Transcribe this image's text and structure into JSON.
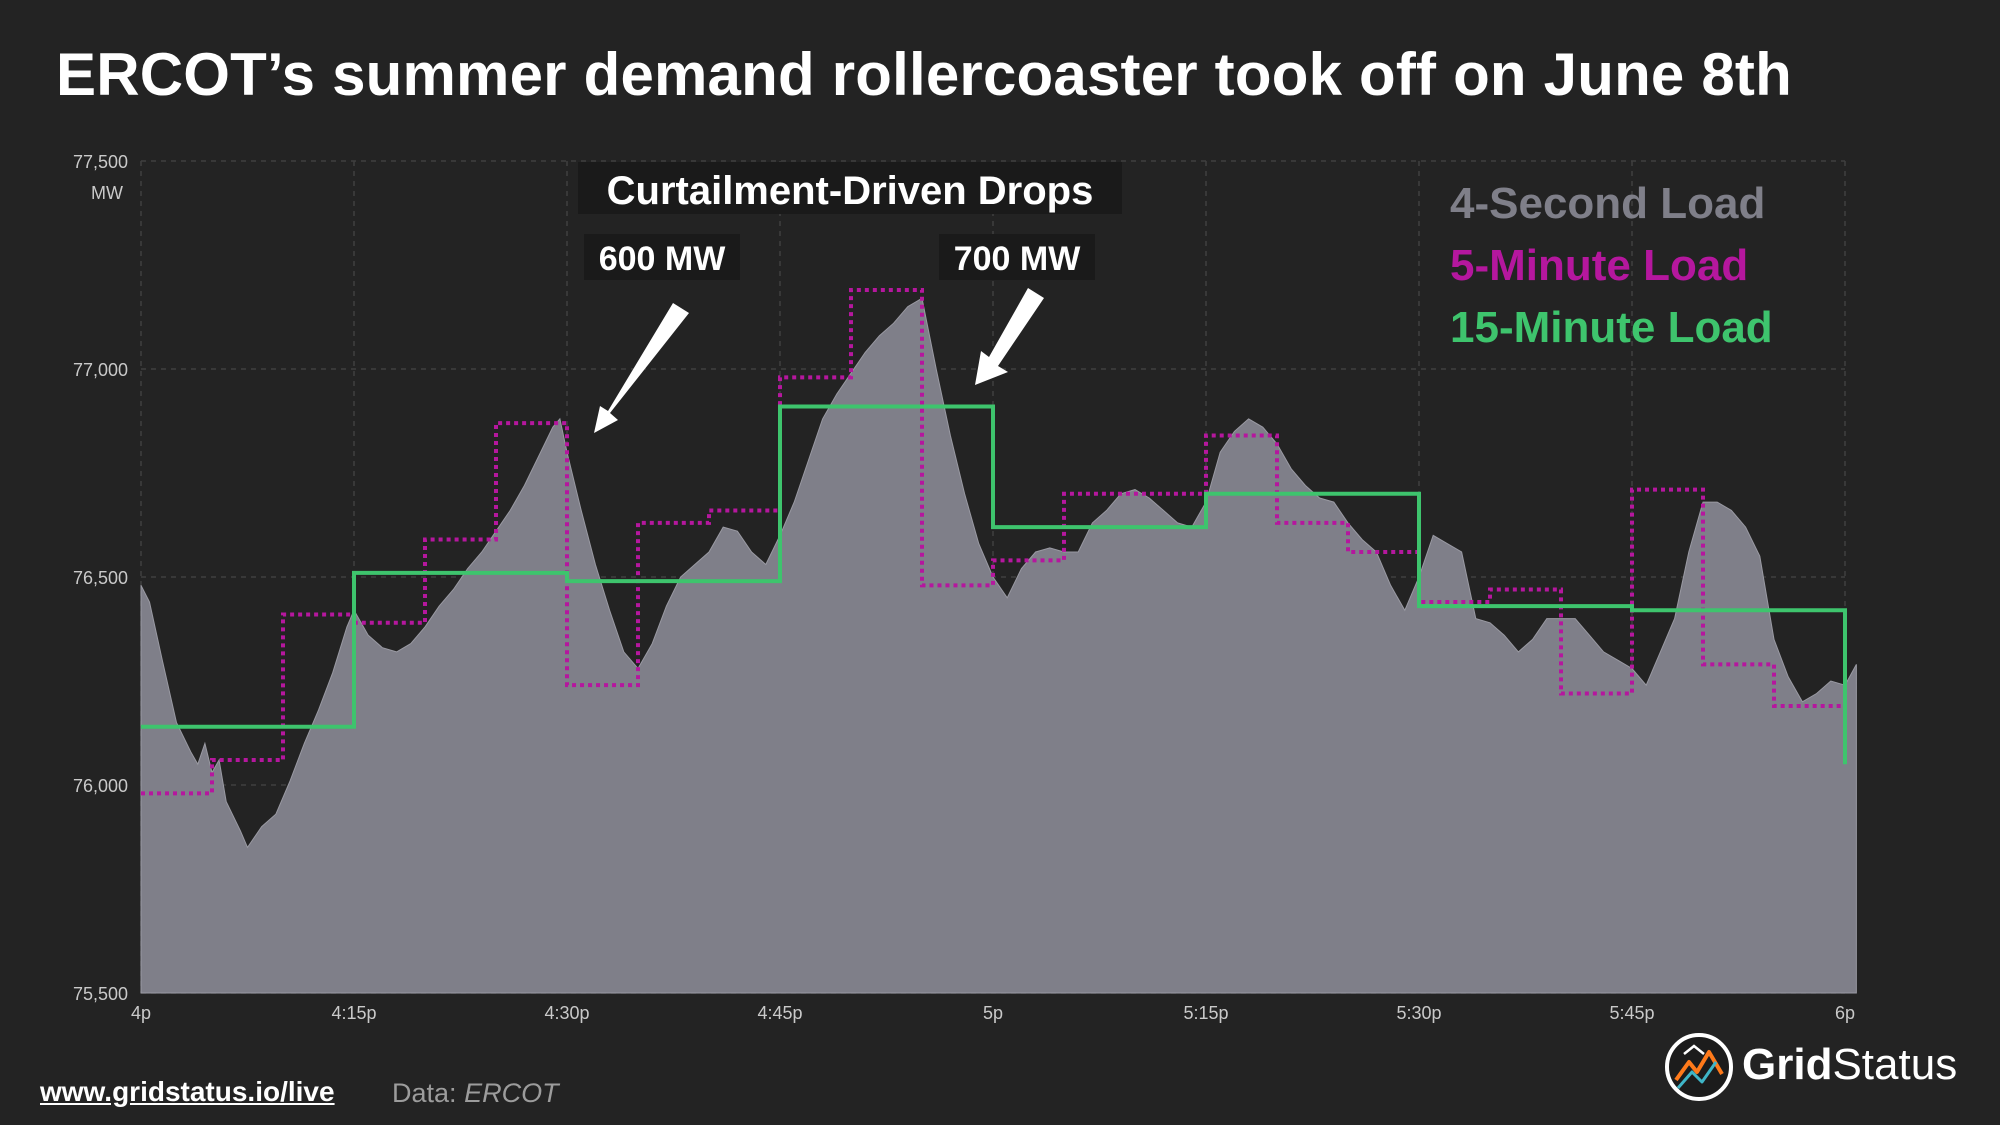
{
  "title": "ERCOT’s summer demand rollercoaster took off on June 8th",
  "footer": {
    "link": "www.gridstatus.io/live",
    "source_label": "Data:",
    "source_name": "ERCOT"
  },
  "brand": {
    "part1": "Grid",
    "part2": "Status"
  },
  "colors": {
    "background": "#232323",
    "load_4s": "#7f7f89",
    "load_5m": "#b5179e",
    "load_15m": "#3ec46d",
    "grid": "#3f3f3f",
    "tick": "#c9c9c9"
  },
  "chart_data": {
    "type": "line",
    "title": "",
    "xlabel": "",
    "ylabel": "MW",
    "x_unit": "minutes after 4p",
    "xlim": [
      0,
      120
    ],
    "ylim": [
      75500,
      77500
    ],
    "yticks": [
      75500,
      76000,
      76500,
      77000,
      77500
    ],
    "ytick_labels": [
      "75,500",
      "76,000",
      "76,500",
      "77,000",
      "77,500"
    ],
    "xticks": [
      0,
      15,
      30,
      45,
      60,
      75,
      90,
      105,
      120
    ],
    "xtick_labels": [
      "4p",
      "4:15p",
      "4:30p",
      "4:45p",
      "5p",
      "5:15p",
      "5:30p",
      "5:45p",
      "6p"
    ],
    "legend": [
      {
        "key": "load_4s",
        "label": "4-Second Load"
      },
      {
        "key": "load_5m",
        "label": "5-Minute Load"
      },
      {
        "key": "load_15m",
        "label": "15-Minute Load"
      }
    ],
    "annotations": {
      "heading": "Curtailment-Driven Drops",
      "drops": [
        {
          "label": "600 MW",
          "from_x": 29,
          "from_y": 76880,
          "to_x": 34,
          "to_y": 76280
        },
        {
          "label": "700 MW",
          "from_x": 55,
          "from_y": 77170,
          "to_x": 61,
          "to_y": 76450
        }
      ]
    },
    "series": [
      {
        "name": "4-Second Load",
        "key": "load_4s",
        "style": "area",
        "points": [
          [
            0,
            76480
          ],
          [
            0.6,
            76440
          ],
          [
            1.5,
            76300
          ],
          [
            2.5,
            76150
          ],
          [
            3.5,
            76080
          ],
          [
            4,
            76050
          ],
          [
            4.5,
            76100
          ],
          [
            5,
            76030
          ],
          [
            5.5,
            76060
          ],
          [
            6,
            75960
          ],
          [
            7,
            75890
          ],
          [
            7.5,
            75850
          ],
          [
            8.5,
            75900
          ],
          [
            9.5,
            75930
          ],
          [
            10.5,
            76010
          ],
          [
            11.5,
            76100
          ],
          [
            12.5,
            76180
          ],
          [
            13.5,
            76270
          ],
          [
            14.5,
            76380
          ],
          [
            15,
            76420
          ],
          [
            16,
            76360
          ],
          [
            17,
            76330
          ],
          [
            18,
            76320
          ],
          [
            19,
            76340
          ],
          [
            20,
            76380
          ],
          [
            21,
            76430
          ],
          [
            22,
            76470
          ],
          [
            23,
            76520
          ],
          [
            24,
            76560
          ],
          [
            25,
            76610
          ],
          [
            26,
            76660
          ],
          [
            27,
            76720
          ],
          [
            28,
            76790
          ],
          [
            29,
            76860
          ],
          [
            29.5,
            76880
          ],
          [
            30,
            76800
          ],
          [
            31,
            76660
          ],
          [
            32,
            76530
          ],
          [
            33,
            76420
          ],
          [
            34,
            76320
          ],
          [
            35,
            76280
          ],
          [
            36,
            76340
          ],
          [
            37,
            76430
          ],
          [
            38,
            76500
          ],
          [
            39,
            76530
          ],
          [
            40,
            76560
          ],
          [
            41,
            76620
          ],
          [
            42,
            76610
          ],
          [
            43,
            76560
          ],
          [
            44,
            76530
          ],
          [
            45,
            76600
          ],
          [
            46,
            76680
          ],
          [
            47,
            76780
          ],
          [
            48,
            76880
          ],
          [
            49,
            76940
          ],
          [
            50,
            76990
          ],
          [
            51,
            77040
          ],
          [
            52,
            77080
          ],
          [
            53,
            77110
          ],
          [
            54,
            77150
          ],
          [
            55,
            77170
          ],
          [
            56,
            77000
          ],
          [
            57,
            76840
          ],
          [
            58,
            76700
          ],
          [
            59,
            76580
          ],
          [
            60,
            76500
          ],
          [
            61,
            76450
          ],
          [
            62,
            76520
          ],
          [
            63,
            76560
          ],
          [
            64,
            76570
          ],
          [
            65,
            76560
          ],
          [
            66,
            76560
          ],
          [
            67,
            76630
          ],
          [
            68,
            76660
          ],
          [
            69,
            76700
          ],
          [
            70,
            76710
          ],
          [
            71,
            76690
          ],
          [
            72,
            76660
          ],
          [
            73,
            76630
          ],
          [
            74,
            76620
          ],
          [
            75,
            76680
          ],
          [
            76,
            76800
          ],
          [
            77,
            76850
          ],
          [
            78,
            76880
          ],
          [
            79,
            76860
          ],
          [
            80,
            76820
          ],
          [
            81,
            76760
          ],
          [
            82,
            76720
          ],
          [
            83,
            76690
          ],
          [
            84,
            76680
          ],
          [
            85,
            76630
          ],
          [
            86,
            76590
          ],
          [
            87,
            76560
          ],
          [
            88,
            76480
          ],
          [
            89,
            76420
          ],
          [
            90,
            76500
          ],
          [
            91,
            76600
          ],
          [
            92,
            76580
          ],
          [
            93,
            76560
          ],
          [
            94,
            76400
          ],
          [
            95,
            76390
          ],
          [
            96,
            76360
          ],
          [
            97,
            76320
          ],
          [
            98,
            76350
          ],
          [
            99,
            76400
          ],
          [
            100,
            76400
          ],
          [
            101,
            76400
          ],
          [
            102,
            76360
          ],
          [
            103,
            76320
          ],
          [
            104,
            76300
          ],
          [
            105,
            76280
          ],
          [
            106,
            76240
          ],
          [
            107,
            76320
          ],
          [
            108,
            76400
          ],
          [
            109,
            76560
          ],
          [
            110,
            76680
          ],
          [
            111,
            76680
          ],
          [
            112,
            76660
          ],
          [
            113,
            76620
          ],
          [
            114,
            76550
          ],
          [
            115,
            76350
          ],
          [
            116,
            76260
          ],
          [
            117,
            76200
          ],
          [
            118,
            76220
          ],
          [
            119,
            76250
          ],
          [
            120,
            76240
          ],
          [
            120.8,
            76290
          ]
        ]
      },
      {
        "name": "5-Minute Load",
        "key": "load_5m",
        "style": "step-dotted",
        "points": [
          [
            0,
            75980
          ],
          [
            5,
            76060
          ],
          [
            10,
            76410
          ],
          [
            15,
            76390
          ],
          [
            20,
            76590
          ],
          [
            25,
            76870
          ],
          [
            30,
            76240
          ],
          [
            35,
            76630
          ],
          [
            40,
            76660
          ],
          [
            45,
            76980
          ],
          [
            50,
            77190
          ],
          [
            55,
            76480
          ],
          [
            60,
            76540
          ],
          [
            65,
            76700
          ],
          [
            70,
            76700
          ],
          [
            75,
            76840
          ],
          [
            80,
            76630
          ],
          [
            85,
            76560
          ],
          [
            90,
            76440
          ],
          [
            95,
            76470
          ],
          [
            100,
            76220
          ],
          [
            105,
            76710
          ],
          [
            110,
            76290
          ],
          [
            115,
            76190
          ],
          [
            120,
            76190
          ]
        ]
      },
      {
        "name": "15-Minute Load",
        "key": "load_15m",
        "style": "step",
        "points": [
          [
            0,
            76140
          ],
          [
            15,
            76510
          ],
          [
            30,
            76490
          ],
          [
            45,
            76910
          ],
          [
            60,
            76620
          ],
          [
            75,
            76700
          ],
          [
            90,
            76430
          ],
          [
            105,
            76420
          ],
          [
            120,
            76410
          ],
          [
            120,
            76050
          ]
        ]
      }
    ]
  }
}
